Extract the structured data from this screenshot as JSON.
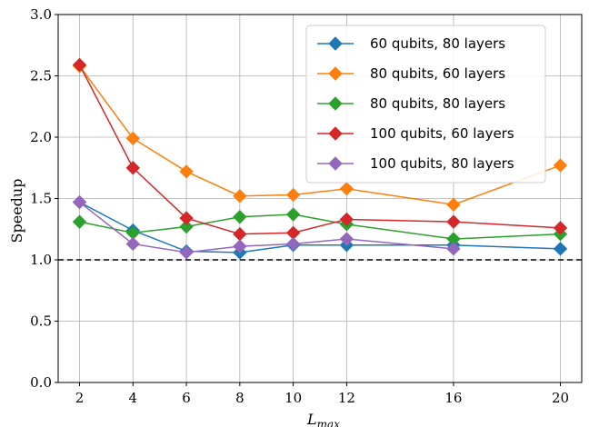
{
  "chart_data": {
    "type": "line",
    "xlabel": "L",
    "xlabel_sub": "max",
    "ylabel": "Speedup",
    "x": [
      2,
      4,
      6,
      8,
      10,
      12,
      16,
      20
    ],
    "x_ticks": [
      "2",
      "4",
      "6",
      "8",
      "10",
      "12",
      "16",
      "20"
    ],
    "ylim": [
      0.0,
      3.0
    ],
    "y_ticks": [
      "0.0",
      "0.5",
      "1.0",
      "1.5",
      "2.0",
      "2.5",
      "3.0"
    ],
    "grid": true,
    "legend_position": "top-right",
    "marker": "diamond",
    "reference_line": {
      "y": 1.0,
      "style": "dashed",
      "color": "#000000"
    },
    "series": [
      {
        "name": "60 qubits, 80 layers",
        "color": "#1f77b4",
        "values": [
          1.47,
          1.24,
          1.07,
          1.06,
          1.12,
          1.12,
          1.12,
          1.09
        ]
      },
      {
        "name": "80 qubits, 60 layers",
        "color": "#ff7f0e",
        "values": [
          2.58,
          1.99,
          1.72,
          1.52,
          1.53,
          1.58,
          1.45,
          1.77
        ]
      },
      {
        "name": "80 qubits, 80 layers",
        "color": "#2ca02c",
        "values": [
          1.31,
          1.22,
          1.27,
          1.35,
          1.37,
          1.29,
          1.17,
          1.21
        ]
      },
      {
        "name": "100 qubits, 60 layers",
        "color": "#d62728",
        "values": [
          2.59,
          1.75,
          1.34,
          1.21,
          1.22,
          1.33,
          1.31,
          1.26
        ]
      },
      {
        "name": "100 qubits, 80 layers",
        "color": "#9467bd",
        "values": [
          1.47,
          1.13,
          1.06,
          1.11,
          1.13,
          1.17,
          1.09,
          null
        ]
      }
    ]
  }
}
